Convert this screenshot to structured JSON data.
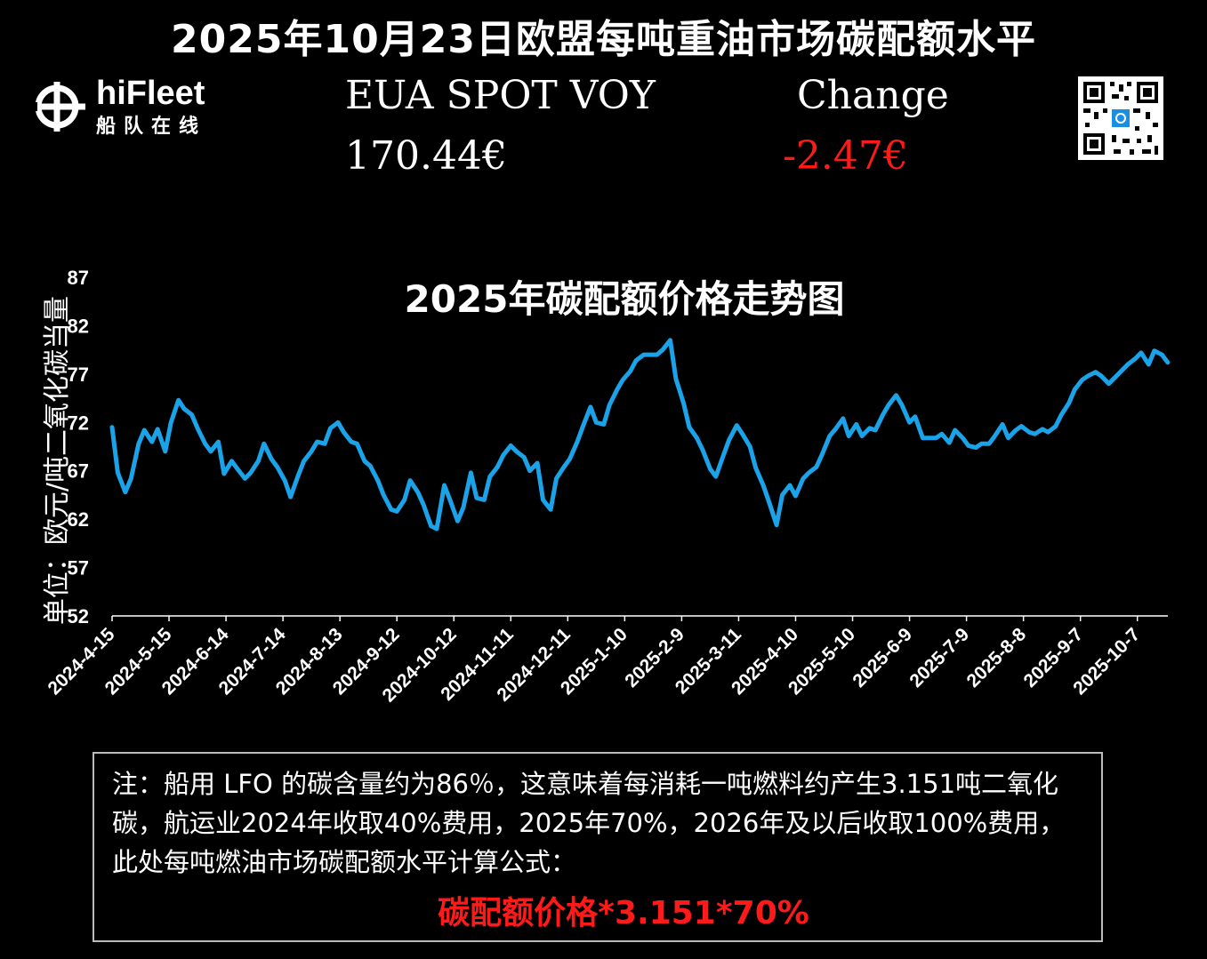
{
  "header": {
    "title": "2025年10月23日欧盟每吨重油市场碳配额水平",
    "logo_name": "hiFleet",
    "logo_sub": "船队在线",
    "eua_label": "EUA SPOT VOY",
    "eua_value": "170.44€",
    "change_label": "Change",
    "change_value": "-2.47€",
    "change_color": "#ff1a1a"
  },
  "note": {
    "text": "注：船用 LFO 的碳含量约为86％，这意味着每消耗一吨燃料约产生3.151吨二氧化碳，航运业2024年收取40%费用，2025年70%，2026年及以后收取100%费用，此处每吨燃油市场碳配额水平计算公式：",
    "formula": "碳配额价格*3.151*70%",
    "formula_color": "#ff1a1a"
  },
  "chart_data": {
    "type": "line",
    "title": "2025年碳配额价格走势图",
    "ylabel": "单位：欧元/吨二氧化碳当量",
    "xlabel": "",
    "ylim": [
      52,
      87
    ],
    "yticks": [
      "52",
      "57",
      "62",
      "67",
      "72",
      "77",
      "82",
      "87"
    ],
    "xticks": [
      "2024-4-15",
      "2024-5-15",
      "2024-6-14",
      "2024-7-14",
      "2024-8-13",
      "2024-9-12",
      "2024-10-12",
      "2024-11-11",
      "2024-12-11",
      "2025-1-10",
      "2025-2-9",
      "2025-3-11",
      "2025-4-10",
      "2025-5-10",
      "2025-6-9",
      "2025-7-9",
      "2025-8-8",
      "2025-9-7",
      "2025-10-7"
    ],
    "line_color": "#1aa3e8",
    "grid": false,
    "x": [
      "2024-04-15",
      "2024-04-18",
      "2024-04-22",
      "2024-04-25",
      "2024-04-29",
      "2024-05-02",
      "2024-05-06",
      "2024-05-09",
      "2024-05-13",
      "2024-05-16",
      "2024-05-20",
      "2024-05-23",
      "2024-05-27",
      "2024-05-30",
      "2024-06-03",
      "2024-06-06",
      "2024-06-10",
      "2024-06-13",
      "2024-06-17",
      "2024-06-20",
      "2024-06-24",
      "2024-06-27",
      "2024-07-01",
      "2024-07-04",
      "2024-07-08",
      "2024-07-11",
      "2024-07-15",
      "2024-07-18",
      "2024-07-22",
      "2024-07-25",
      "2024-07-29",
      "2024-08-01",
      "2024-08-05",
      "2024-08-08",
      "2024-08-12",
      "2024-08-15",
      "2024-08-19",
      "2024-08-22",
      "2024-08-26",
      "2024-08-29",
      "2024-09-02",
      "2024-09-05",
      "2024-09-09",
      "2024-09-12",
      "2024-09-16",
      "2024-09-19",
      "2024-09-23",
      "2024-09-26",
      "2024-09-30",
      "2024-10-03",
      "2024-10-07",
      "2024-10-10",
      "2024-10-14",
      "2024-10-17",
      "2024-10-21",
      "2024-10-24",
      "2024-10-28",
      "2024-10-31",
      "2024-11-04",
      "2024-11-07",
      "2024-11-11",
      "2024-11-14",
      "2024-11-18",
      "2024-11-21",
      "2024-11-25",
      "2024-11-28",
      "2024-12-02",
      "2024-12-05",
      "2024-12-09",
      "2024-12-12",
      "2024-12-16",
      "2024-12-19",
      "2024-12-23",
      "2024-12-26",
      "2024-12-30",
      "2025-01-02",
      "2025-01-06",
      "2025-01-09",
      "2025-01-13",
      "2025-01-16",
      "2025-01-20",
      "2025-01-23",
      "2025-01-27",
      "2025-01-30",
      "2025-02-03",
      "2025-02-06",
      "2025-02-10",
      "2025-02-13",
      "2025-02-17",
      "2025-02-20",
      "2025-02-24",
      "2025-02-27",
      "2025-03-03",
      "2025-03-06",
      "2025-03-10",
      "2025-03-13",
      "2025-03-17",
      "2025-03-20",
      "2025-03-24",
      "2025-03-27",
      "2025-03-31",
      "2025-04-03",
      "2025-04-07",
      "2025-04-10",
      "2025-04-14",
      "2025-04-17",
      "2025-04-21",
      "2025-04-24",
      "2025-04-28",
      "2025-05-01",
      "2025-05-05",
      "2025-05-08",
      "2025-05-12",
      "2025-05-15",
      "2025-05-19",
      "2025-05-22",
      "2025-05-26",
      "2025-05-29",
      "2025-06-02",
      "2025-06-05",
      "2025-06-09",
      "2025-06-12",
      "2025-06-16",
      "2025-06-19",
      "2025-06-23",
      "2025-06-26",
      "2025-06-30",
      "2025-07-03",
      "2025-07-07",
      "2025-07-10",
      "2025-07-14",
      "2025-07-17",
      "2025-07-21",
      "2025-07-24",
      "2025-07-28",
      "2025-07-31",
      "2025-08-04",
      "2025-08-07",
      "2025-08-11",
      "2025-08-14",
      "2025-08-18",
      "2025-08-21",
      "2025-08-25",
      "2025-08-28",
      "2025-09-01",
      "2025-09-04",
      "2025-09-08",
      "2025-09-11",
      "2025-09-15",
      "2025-09-18",
      "2025-09-22",
      "2025-09-25",
      "2025-09-29",
      "2025-10-02",
      "2025-10-06",
      "2025-10-09",
      "2025-10-13",
      "2025-10-16",
      "2025-10-20",
      "2025-10-23"
    ],
    "values": [
      71.5,
      66.8,
      64.8,
      66.2,
      69.8,
      71.2,
      70.0,
      71.3,
      69.0,
      72.0,
      74.3,
      73.4,
      72.8,
      71.4,
      69.8,
      69.0,
      70.0,
      66.7,
      68.0,
      67.2,
      66.2,
      66.8,
      68.0,
      69.8,
      68.2,
      67.4,
      66.0,
      64.3,
      66.5,
      68.0,
      69.0,
      70.0,
      69.8,
      71.4,
      72.0,
      71.0,
      70.0,
      69.8,
      68.0,
      67.5,
      66.0,
      64.5,
      63.0,
      62.8,
      64.0,
      66.0,
      64.8,
      63.5,
      61.3,
      61.0,
      65.5,
      64.0,
      61.8,
      63.2,
      66.8,
      64.2,
      64.0,
      66.4,
      67.4,
      68.6,
      69.6,
      69.0,
      68.4,
      67.0,
      67.8,
      64.0,
      63.0,
      66.2,
      67.4,
      68.2,
      70.0,
      71.6,
      73.6,
      72.0,
      71.8,
      73.8,
      75.4,
      76.4,
      77.3,
      78.4,
      79.0,
      79.0,
      79.0,
      79.5,
      80.5,
      76.5,
      74.0,
      71.5,
      70.4,
      69.2,
      67.2,
      66.4,
      68.6,
      70.2,
      71.7,
      70.8,
      69.5,
      67.3,
      65.5,
      63.8,
      61.4,
      64.5,
      65.5,
      64.4,
      66.2,
      66.8,
      67.4,
      68.7,
      70.6,
      71.3,
      72.4,
      70.6,
      71.8,
      70.6,
      71.4,
      71.2,
      72.8,
      73.8,
      74.8,
      73.8,
      72.0,
      72.6,
      70.4,
      70.4,
      70.4,
      70.8,
      69.9,
      71.2,
      70.4,
      69.6,
      69.4,
      69.8,
      69.8,
      70.6,
      71.8,
      70.4,
      71.2,
      71.6,
      71.0,
      70.8,
      71.3,
      71.0,
      71.6,
      72.8,
      74.0,
      75.4,
      76.4,
      76.8,
      77.2,
      76.8,
      76.0,
      76.6,
      77.4,
      78.0,
      78.6,
      79.2,
      78.0,
      79.4,
      79.0,
      78.2
    ]
  }
}
